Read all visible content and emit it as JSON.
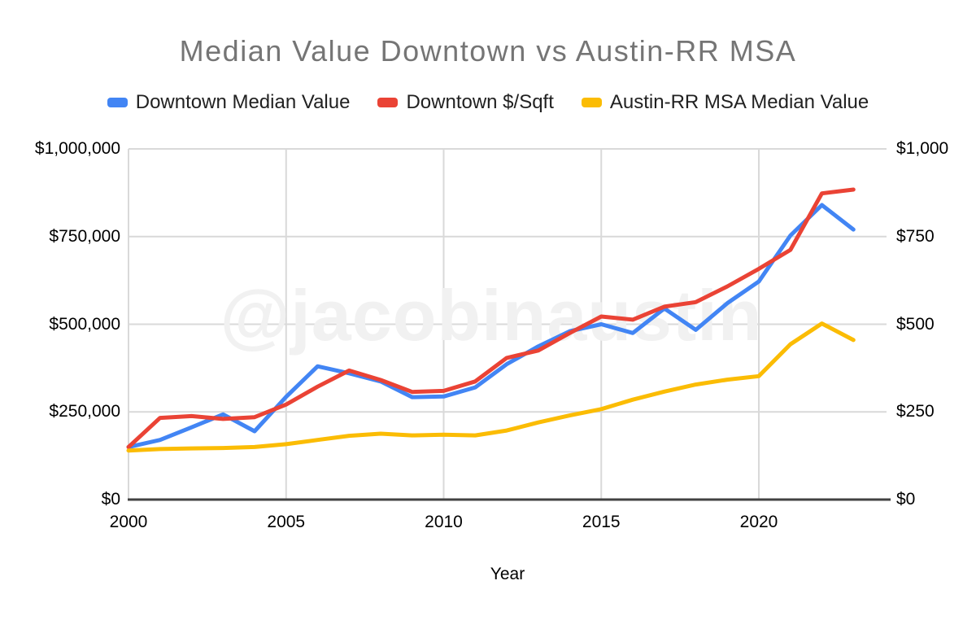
{
  "title": "Median Value Downtown vs Austin-RR MSA",
  "watermark": "@jacobinaustin",
  "legend": [
    {
      "label": "Downtown Median Value",
      "color": "#4285F4"
    },
    {
      "label": "Downtown $/Sqft",
      "color": "#EA4335"
    },
    {
      "label": "Austin-RR MSA Median Value",
      "color": "#FBBC04"
    }
  ],
  "chart_data": {
    "type": "line",
    "title": "Median Value Downtown vs Austin-RR MSA",
    "xlabel": "Year",
    "grid": true,
    "legend_position": "top",
    "x": [
      2000,
      2001,
      2002,
      2003,
      2004,
      2005,
      2006,
      2007,
      2008,
      2009,
      2010,
      2011,
      2012,
      2013,
      2014,
      2015,
      2016,
      2017,
      2018,
      2019,
      2020,
      2021,
      2022,
      2023
    ],
    "x_tick_labels": [
      "2000",
      "2005",
      "2010",
      "2015",
      "2020"
    ],
    "x_tick_years": [
      2000,
      2005,
      2010,
      2015,
      2020
    ],
    "xlim": [
      2000,
      2024.2
    ],
    "left_axis": {
      "min": 0,
      "max": 1000000,
      "ticks_top_to_bottom": [
        "$1,000,000",
        "$750,000",
        "$500,000",
        "$250,000",
        "$0"
      ]
    },
    "right_axis": {
      "min": 0,
      "max": 1000,
      "ticks_top_to_bottom": [
        "$1,000",
        "$750",
        "$500",
        "$250",
        "$0"
      ]
    },
    "series": [
      {
        "name": "Downtown Median Value",
        "axis": "left",
        "color": "#4285F4",
        "values": [
          150000,
          170000,
          206000,
          243000,
          195000,
          293000,
          380000,
          360000,
          337000,
          292000,
          294000,
          320000,
          386000,
          437000,
          480000,
          500000,
          475000,
          545000,
          484000,
          560000,
          622000,
          753000,
          840000,
          770000
        ]
      },
      {
        "name": "Downtown $/Sqft",
        "axis": "right",
        "color": "#EA4335",
        "values": [
          150,
          233,
          238,
          230,
          235,
          271,
          322,
          368,
          341,
          307,
          310,
          337,
          404,
          425,
          475,
          522,
          513,
          550,
          563,
          608,
          658,
          712,
          873,
          884
        ]
      },
      {
        "name": "Austin-RR MSA Median Value",
        "axis": "left",
        "color": "#FBBC04",
        "values": [
          140000,
          144000,
          146000,
          147000,
          150000,
          158000,
          170000,
          182000,
          188000,
          183000,
          185000,
          183000,
          197000,
          220000,
          240000,
          258000,
          285000,
          308000,
          328000,
          342000,
          352000,
          443000,
          502000,
          455000
        ]
      }
    ],
    "grid_color": "#d9d9d9",
    "axis_line_color": "#424242",
    "title_color": "#757575",
    "watermark_color": "#f1f1f1"
  }
}
